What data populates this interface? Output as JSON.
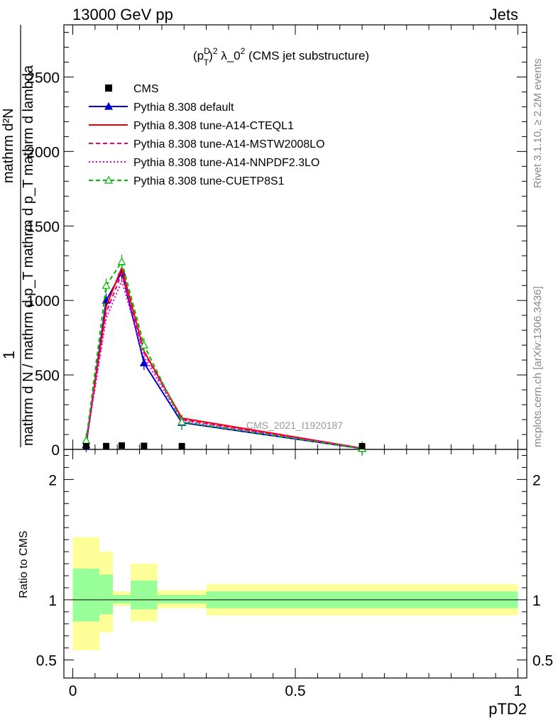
{
  "header": {
    "left": "13000 GeV pp",
    "right": "Jets"
  },
  "plot_title": "(p_T^D)^2 λ_0^2 (CMS jet substructure)",
  "side_text": {
    "rivet": "Rivet 3.1.10, ≥ 2.2M events",
    "mcplots": "mcplots.cern.ch [arXiv:1306.3436]"
  },
  "watermark": "CMS_2021_I1920187",
  "ylabel_main": {
    "numerator": "1",
    "lines": [
      "mathrm d N / mathrm d p_T mathrm d p_T mathrm d lambda",
      "mathrm d²N"
    ]
  },
  "ylabel_ratio": "Ratio to CMS",
  "xlabel": "pTD2",
  "legend": [
    {
      "label": "CMS",
      "color": "#000000",
      "style": "solid",
      "marker": "square"
    },
    {
      "label": "Pythia 8.308 default",
      "color": "#0000cc",
      "style": "solid",
      "marker": "triangle-filled"
    },
    {
      "label": "Pythia 8.308 tune-A14-CTEQL1",
      "color": "#ee0000",
      "style": "solid",
      "marker": "none"
    },
    {
      "label": "Pythia 8.308 tune-A14-MSTW2008LO",
      "color": "#ee0077",
      "style": "dashed",
      "marker": "none"
    },
    {
      "label": "Pythia 8.308 tune-A14-NNPDF2.3LO",
      "color": "#dd00dd",
      "style": "dotted",
      "marker": "none"
    },
    {
      "label": "Pythia 8.308 tune-CUETP8S1",
      "color": "#00bb00",
      "style": "dashed",
      "marker": "triangle-open"
    }
  ],
  "chart_data": {
    "type": "line",
    "xlim": [
      -0.02,
      1.02
    ],
    "main_ylim": [
      0,
      2850
    ],
    "ratio_ylim": [
      0.35,
      2.25
    ],
    "x_ticks": [
      0,
      0.5,
      1
    ],
    "x_tick_labels": [
      "0",
      "0.5",
      "1"
    ],
    "main_y_ticks": [
      0,
      500,
      1000,
      1500,
      2000,
      2500
    ],
    "main_y_tick_labels": [
      "0",
      "500",
      "1000",
      "1500",
      "2000",
      "2500"
    ],
    "ratio_y_ticks": [
      0.5,
      1,
      2
    ],
    "ratio_y_tick_labels": [
      "0.5",
      "1",
      "2"
    ],
    "x": [
      0.03,
      0.075,
      0.11,
      0.16,
      0.245,
      0.65
    ],
    "data": {
      "name": "CMS",
      "values": [
        0.05,
        1.0,
        4.5,
        2.3,
        0.6,
        0.0
      ]
    },
    "series": [
      {
        "name": "Pythia 8.308 default",
        "values": [
          30,
          1000,
          1190,
          580,
          180,
          5
        ]
      },
      {
        "name": "Pythia 8.308 tune-A14-CTEQL1",
        "values": [
          50,
          960,
          1220,
          660,
          210,
          8
        ]
      },
      {
        "name": "Pythia 8.308 tune-A14-MSTW2008LO",
        "values": [
          45,
          920,
          1180,
          650,
          200,
          7
        ]
      },
      {
        "name": "Pythia 8.308 tune-A14-NNPDF2.3LO",
        "values": [
          40,
          880,
          1130,
          620,
          195,
          6
        ]
      },
      {
        "name": "Pythia 8.308 tune-CUETP8S1",
        "values": [
          60,
          1100,
          1260,
          700,
          185,
          6
        ]
      }
    ],
    "ratio_bands": [
      {
        "x0": 0.0,
        "x1": 0.06,
        "stat_lo": 0.82,
        "stat_hi": 1.26,
        "tot_lo": 0.58,
        "tot_hi": 1.52
      },
      {
        "x0": 0.06,
        "x1": 0.09,
        "stat_lo": 0.88,
        "stat_hi": 1.21,
        "tot_lo": 0.73,
        "tot_hi": 1.4
      },
      {
        "x0": 0.09,
        "x1": 0.13,
        "stat_lo": 0.97,
        "stat_hi": 1.04,
        "tot_lo": 0.95,
        "tot_hi": 1.07
      },
      {
        "x0": 0.13,
        "x1": 0.19,
        "stat_lo": 0.92,
        "stat_hi": 1.16,
        "tot_lo": 0.82,
        "tot_hi": 1.3
      },
      {
        "x0": 0.19,
        "x1": 0.3,
        "stat_lo": 0.97,
        "stat_hi": 1.04,
        "tot_lo": 0.93,
        "tot_hi": 1.08
      },
      {
        "x0": 0.3,
        "x1": 1.0,
        "stat_lo": 0.93,
        "stat_hi": 1.07,
        "tot_lo": 0.87,
        "tot_hi": 1.13
      }
    ],
    "ratio_band_colors": {
      "stat": "#99ff99",
      "total": "#ffff99"
    },
    "grid": false,
    "legend_position": "top-left"
  }
}
